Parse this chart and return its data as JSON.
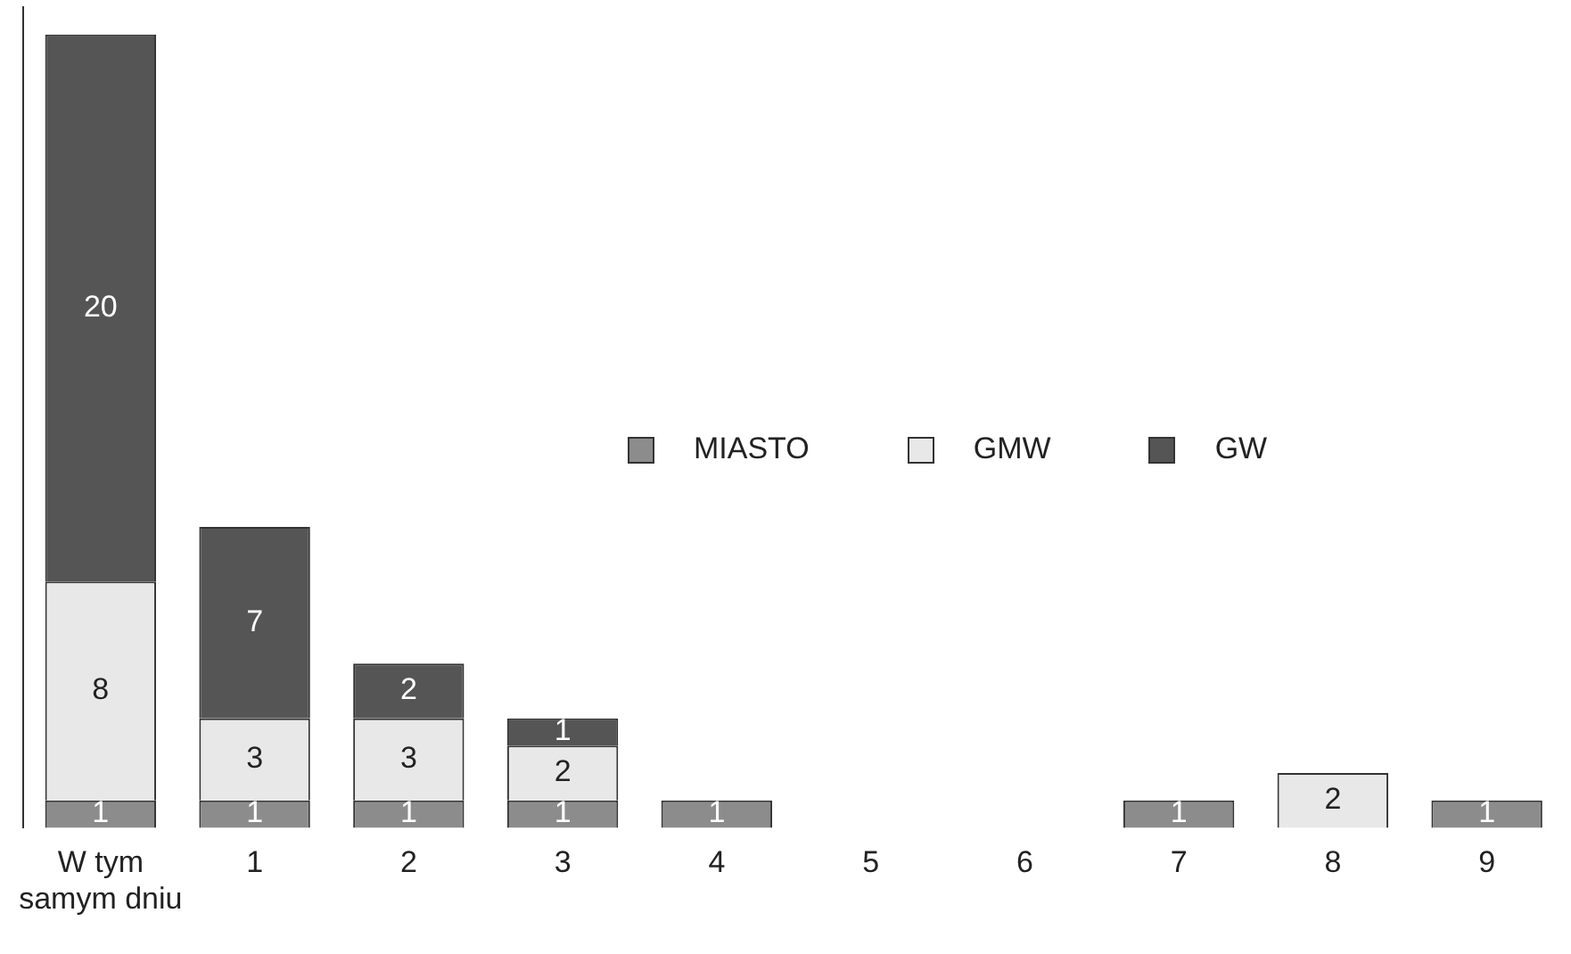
{
  "chart_data": {
    "type": "bar",
    "stacked": true,
    "data_labels": true,
    "legend": "right",
    "grid": false,
    "categories": [
      "W tym samym dniu",
      "1",
      "2",
      "3",
      "4",
      "5",
      "6",
      "7",
      "8",
      "9"
    ],
    "series": [
      {
        "name": "MIASTO",
        "color": "#8c8c8c",
        "values": [
          1,
          1,
          1,
          1,
          1,
          null,
          null,
          1,
          null,
          1
        ]
      },
      {
        "name": "GMW",
        "color": "#e8e8e8",
        "values": [
          8,
          3,
          3,
          2,
          null,
          null,
          null,
          null,
          2,
          null
        ]
      },
      {
        "name": "GW",
        "color": "#555555",
        "values": [
          20,
          7,
          2,
          1,
          null,
          null,
          null,
          null,
          null,
          null
        ]
      }
    ]
  }
}
